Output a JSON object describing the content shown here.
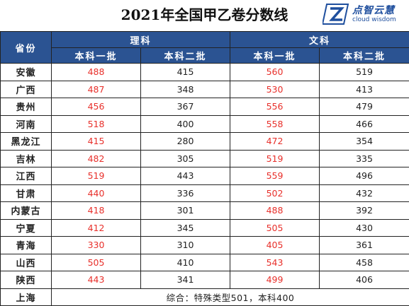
{
  "title": "2021年全国甲乙卷分数线",
  "logo": {
    "cn": "点智云慧",
    "en": "cloud wisdom",
    "icon": "logo-mark-icon"
  },
  "colors": {
    "header_bg": "#2b5392",
    "header_text": "#ffffff",
    "highlight": "#e8302b",
    "border": "#222222"
  },
  "table": {
    "province_header": "省份",
    "groups": [
      "理科",
      "文科"
    ],
    "subheaders": [
      "本科一批",
      "本科二批",
      "本科一批",
      "本科二批"
    ],
    "rows": [
      {
        "province": "安徽",
        "scores": [
          "488",
          "415",
          "560",
          "519"
        ]
      },
      {
        "province": "广西",
        "scores": [
          "487",
          "348",
          "530",
          "413"
        ]
      },
      {
        "province": "贵州",
        "scores": [
          "456",
          "367",
          "556",
          "479"
        ]
      },
      {
        "province": "河南",
        "scores": [
          "518",
          "400",
          "558",
          "466"
        ]
      },
      {
        "province": "黑龙江",
        "scores": [
          "415",
          "280",
          "472",
          "354"
        ]
      },
      {
        "province": "吉林",
        "scores": [
          "482",
          "305",
          "519",
          "335"
        ]
      },
      {
        "province": "江西",
        "scores": [
          "519",
          "443",
          "559",
          "496"
        ]
      },
      {
        "province": "甘肃",
        "scores": [
          "440",
          "336",
          "502",
          "432"
        ]
      },
      {
        "province": "内蒙古",
        "scores": [
          "418",
          "301",
          "488",
          "392"
        ]
      },
      {
        "province": "宁夏",
        "scores": [
          "412",
          "345",
          "505",
          "430"
        ]
      },
      {
        "province": "青海",
        "scores": [
          "330",
          "310",
          "405",
          "361"
        ]
      },
      {
        "province": "山西",
        "scores": [
          "505",
          "410",
          "543",
          "458"
        ]
      },
      {
        "province": "陕西",
        "scores": [
          "443",
          "341",
          "499",
          "406"
        ]
      }
    ],
    "last_row": {
      "province": "上海",
      "note": "综合：特殊类型501，本科400"
    }
  }
}
